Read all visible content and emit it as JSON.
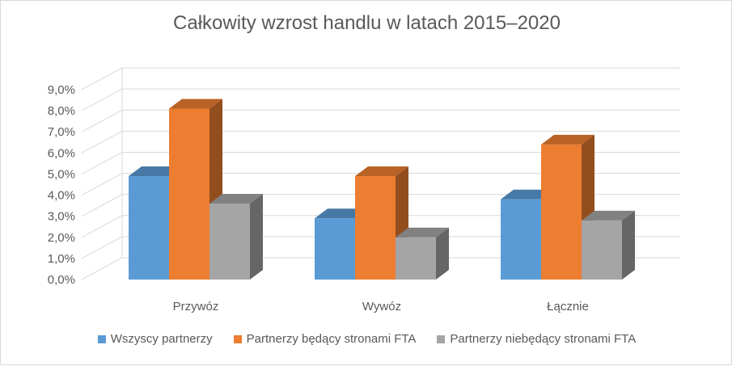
{
  "chart_data": {
    "type": "bar",
    "title": "Całkowity wzrost handlu w latach 2015–2020",
    "categories": [
      "Przywóz",
      "Wywóz",
      "Łącznie"
    ],
    "series": [
      {
        "name": "Wszyscy partnerzy",
        "values": [
          4.9,
          2.9,
          3.8
        ],
        "color": "#5b9bd5"
      },
      {
        "name": "Partnerzy będący stronami FTA",
        "values": [
          8.1,
          4.9,
          6.4
        ],
        "color": "#ed7d31"
      },
      {
        "name": "Partnerzy niebędący stronami FTA",
        "values": [
          3.6,
          2.0,
          2.8
        ],
        "color": "#a5a5a5"
      }
    ],
    "ylim": [
      0,
      9
    ],
    "yticks": [
      "0,0%",
      "1,0%",
      "2,0%",
      "3,0%",
      "4,0%",
      "5,0%",
      "6,0%",
      "7,0%",
      "8,0%",
      "9,0%"
    ],
    "grid": true,
    "legend": "bottom",
    "style": "3d-clustered-column"
  }
}
